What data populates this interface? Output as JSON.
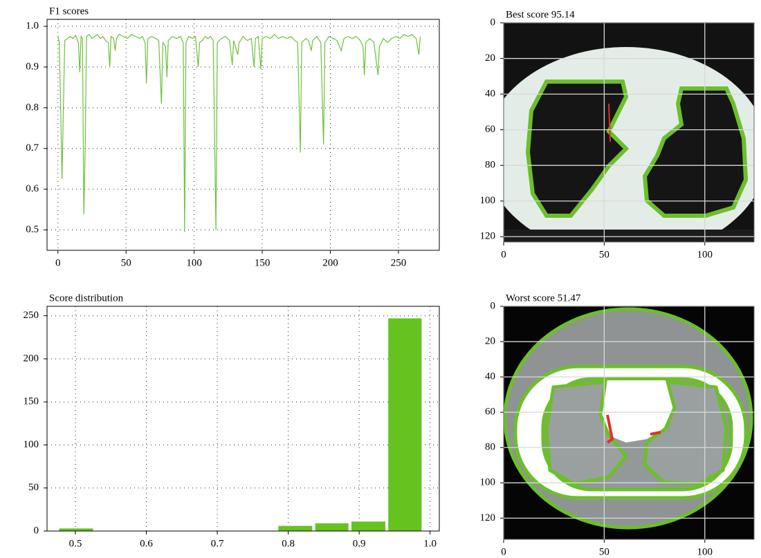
{
  "chart_data": [
    {
      "type": "line",
      "title": "F1 scores",
      "color": "#6cc03a",
      "x": [
        0,
        1,
        2,
        3,
        4,
        5,
        7,
        9,
        11,
        13,
        15,
        16,
        17,
        18,
        19,
        20,
        21,
        23,
        25,
        27,
        29,
        31,
        33,
        35,
        37,
        38,
        39,
        41,
        42,
        43,
        45,
        48,
        51,
        54,
        57,
        60,
        62,
        64,
        65,
        66,
        69,
        72,
        74,
        76,
        77,
        79,
        80,
        81,
        84,
        87,
        90,
        92,
        93,
        94,
        96,
        99,
        101,
        103,
        104,
        106,
        108,
        110,
        112,
        114,
        116,
        117,
        120,
        123,
        126,
        128,
        129,
        132,
        133,
        136,
        139,
        142,
        144,
        145,
        147,
        149,
        150,
        153,
        156,
        159,
        162,
        165,
        168,
        171,
        174,
        176,
        178,
        179,
        182,
        184,
        186,
        187,
        190,
        193,
        195,
        196,
        199,
        202,
        205,
        208,
        210,
        213,
        216,
        219,
        222,
        224,
        225,
        226,
        229,
        232,
        235,
        236,
        239,
        242,
        245,
        248,
        251,
        254,
        257,
        260,
        263,
        265,
        266
      ],
      "values": [
        0.975,
        0.96,
        0.8,
        0.625,
        0.8,
        0.965,
        0.97,
        0.975,
        0.97,
        0.978,
        0.96,
        0.887,
        0.975,
        0.97,
        0.538,
        0.7,
        0.975,
        0.98,
        0.97,
        0.975,
        0.98,
        0.97,
        0.975,
        0.965,
        0.96,
        0.9,
        0.975,
        0.97,
        0.94,
        0.97,
        0.98,
        0.975,
        0.97,
        0.98,
        0.975,
        0.97,
        0.975,
        0.96,
        0.86,
        0.97,
        0.975,
        0.97,
        0.965,
        0.81,
        0.96,
        0.95,
        0.875,
        0.965,
        0.975,
        0.97,
        0.975,
        0.96,
        0.495,
        0.96,
        0.975,
        0.97,
        0.975,
        0.9,
        0.96,
        0.965,
        0.975,
        0.97,
        0.975,
        0.965,
        0.5,
        0.96,
        0.97,
        0.975,
        0.965,
        0.905,
        0.965,
        0.93,
        0.96,
        0.975,
        0.965,
        0.97,
        0.9,
        0.97,
        0.975,
        0.895,
        0.97,
        0.975,
        0.97,
        0.98,
        0.97,
        0.975,
        0.97,
        0.975,
        0.965,
        0.96,
        0.69,
        0.96,
        0.97,
        0.965,
        0.94,
        0.965,
        0.975,
        0.96,
        0.71,
        0.96,
        0.975,
        0.97,
        0.965,
        0.94,
        0.97,
        0.975,
        0.97,
        0.975,
        0.965,
        0.95,
        0.88,
        0.96,
        0.97,
        0.96,
        0.88,
        0.95,
        0.97,
        0.96,
        0.97,
        0.975,
        0.97,
        0.98,
        0.975,
        0.98,
        0.97,
        0.93,
        0.975
      ],
      "xlim": [
        -8,
        280
      ],
      "ylim": [
        0.45,
        1.017
      ],
      "xticks": [
        0,
        50,
        100,
        150,
        200,
        250
      ],
      "yticks": [
        0.5,
        0.6,
        0.7,
        0.8,
        0.9,
        {
          "value": 1,
          "label": "1.0"
        }
      ],
      "grid": "dotted"
    },
    {
      "type": "histogram",
      "title": "Score distribution",
      "color": "#66c31f",
      "bins": [
        0.475,
        0.527,
        0.578,
        0.63,
        0.681,
        0.733,
        0.784,
        0.836,
        0.887,
        0.939,
        0.99
      ],
      "values": [
        3,
        0,
        0,
        0,
        0,
        0,
        6,
        9,
        11,
        247
      ],
      "xlim": [
        0.46,
        1.013
      ],
      "ylim": [
        0,
        261
      ],
      "xticks": [
        0.5,
        0.6,
        0.7,
        0.8,
        0.9,
        {
          "value": 1,
          "label": "1.0"
        }
      ],
      "yticks": [
        0,
        50,
        100,
        150,
        200,
        250
      ],
      "grid": "dotted"
    },
    {
      "type": "image",
      "title": "Best score 95.14",
      "xlim": [
        0,
        124.5
      ],
      "ylim": [
        0,
        123
      ],
      "y_inverted": true,
      "xticks": [
        0,
        50,
        100
      ],
      "yticks": [
        0,
        20,
        40,
        60,
        80,
        100,
        120
      ],
      "grid": "solid"
    },
    {
      "type": "image",
      "title": "Worst score 51.47",
      "xlim": [
        0,
        124.5
      ],
      "ylim": [
        0,
        132
      ],
      "y_inverted": true,
      "xticks": [
        0,
        50,
        100
      ],
      "yticks": [
        0,
        20,
        40,
        60,
        80,
        100,
        120
      ],
      "grid": "solid"
    }
  ]
}
